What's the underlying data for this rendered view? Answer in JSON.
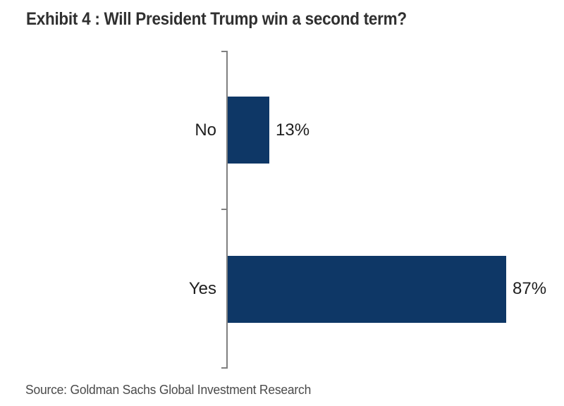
{
  "title": "Exhibit 4 : Will President Trump win a second term?",
  "source": "Source: Goldman Sachs Global Investment Research",
  "colors": {
    "bar": "#0e3766",
    "axis": "#808080",
    "title_text": "#303030",
    "label_text": "#1f1f1f",
    "source_text": "#4a4a4a"
  },
  "chart_data": {
    "type": "bar",
    "orientation": "horizontal",
    "title": "Exhibit 4 : Will President Trump win a second term?",
    "categories": [
      "No",
      "Yes"
    ],
    "values": [
      13,
      87
    ],
    "value_labels": [
      "13%",
      "87%"
    ],
    "xlabel": "",
    "ylabel": "",
    "xlim": [
      0,
      100
    ],
    "grid": false,
    "legend": false,
    "source": "Source: Goldman Sachs Global Investment Research"
  }
}
